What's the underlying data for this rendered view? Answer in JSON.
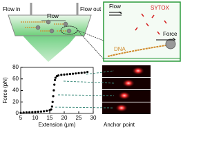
{
  "chart_data": {
    "type": "scatter",
    "xlabel": "Extension (μm)",
    "ylabel": "Force (pN)",
    "x": [
      5,
      6,
      7,
      8,
      9,
      10,
      11,
      12,
      13,
      14,
      15,
      15.5,
      15.8,
      16,
      16.2,
      16.4,
      16.6,
      16.8,
      17,
      17.5,
      18,
      19,
      20,
      21,
      22,
      23,
      24,
      25,
      26,
      27,
      28
    ],
    "values": [
      1,
      1.5,
      1.8,
      2,
      2.3,
      2.6,
      3,
      3.3,
      3.8,
      4.5,
      5.5,
      7,
      12,
      20,
      30,
      40,
      50,
      58,
      62,
      65,
      66,
      67,
      67.5,
      68,
      68.5,
      69,
      69.5,
      70,
      70.5,
      71,
      72
    ],
    "color": "#000000",
    "xlim": [
      5,
      30
    ],
    "xticks": [
      5,
      10,
      15,
      20,
      25,
      30
    ],
    "ylim": [
      0,
      80
    ],
    "yticks": [
      0,
      20,
      40,
      60,
      80
    ]
  },
  "diagram": {
    "flow_in": "Flow in",
    "flow": "Flow",
    "flow_out": "Flow out",
    "inset_flow": "Flow",
    "sytox": "SYTOX",
    "dna": "DNA",
    "force": "Force",
    "anchor_point": "Anchor point"
  }
}
